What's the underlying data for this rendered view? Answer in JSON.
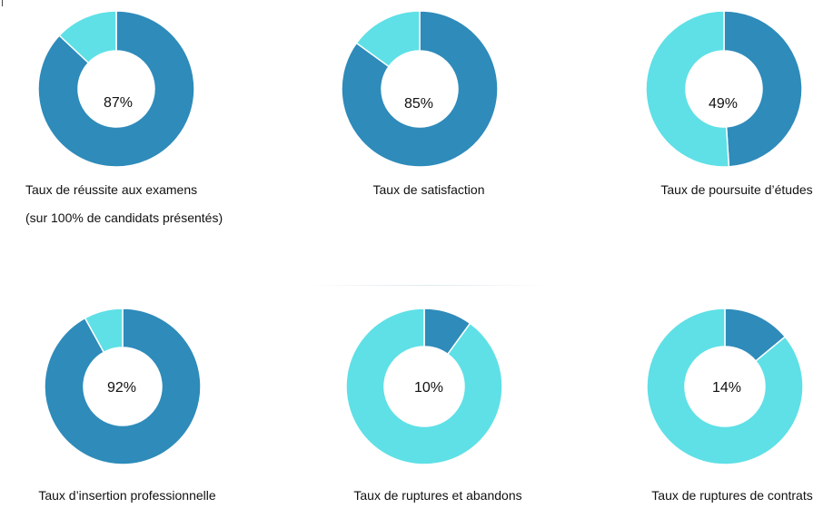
{
  "colors": {
    "dark": "#2E8BBA",
    "light": "#5EE0E6",
    "hole": "#FFFFFF",
    "text": "#111111"
  },
  "chart_data": [
    {
      "type": "pie",
      "subtype": "donut",
      "value_percent": 87,
      "slices": [
        {
          "part": "value",
          "percent": 87,
          "color": "#2E8BBA"
        },
        {
          "part": "remainder",
          "percent": 13,
          "color": "#5EE0E6"
        }
      ],
      "center_label": "87%",
      "caption": "Taux de réussite aux examens",
      "subcaption": "(sur 100% de candidats présentés)"
    },
    {
      "type": "pie",
      "subtype": "donut",
      "value_percent": 85,
      "slices": [
        {
          "part": "value",
          "percent": 85,
          "color": "#2E8BBA"
        },
        {
          "part": "remainder",
          "percent": 15,
          "color": "#5EE0E6"
        }
      ],
      "center_label": "85%",
      "caption": "Taux de satisfaction"
    },
    {
      "type": "pie",
      "subtype": "donut",
      "value_percent": 49,
      "slices": [
        {
          "part": "value",
          "percent": 49,
          "color": "#2E8BBA"
        },
        {
          "part": "remainder",
          "percent": 51,
          "color": "#5EE0E6"
        }
      ],
      "center_label": "49%",
      "caption": "Taux de poursuite d’études"
    },
    {
      "type": "pie",
      "subtype": "donut",
      "value_percent": 92,
      "slices": [
        {
          "part": "value",
          "percent": 92,
          "color": "#2E8BBA"
        },
        {
          "part": "remainder",
          "percent": 8,
          "color": "#5EE0E6"
        }
      ],
      "center_label": "92%",
      "caption": "Taux d’insertion professionnelle"
    },
    {
      "type": "pie",
      "subtype": "donut",
      "value_percent": 10,
      "slices": [
        {
          "part": "value",
          "percent": 10,
          "color": "#2E8BBA"
        },
        {
          "part": "remainder",
          "percent": 90,
          "color": "#5EE0E6"
        }
      ],
      "center_label": "10%",
      "caption": "Taux de ruptures et abandons"
    },
    {
      "type": "pie",
      "subtype": "donut",
      "value_percent": 14,
      "slices": [
        {
          "part": "value",
          "percent": 14,
          "color": "#2E8BBA"
        },
        {
          "part": "remainder",
          "percent": 86,
          "color": "#5EE0E6"
        }
      ],
      "center_label": "14%",
      "caption": "Taux de ruptures de contrats"
    }
  ]
}
